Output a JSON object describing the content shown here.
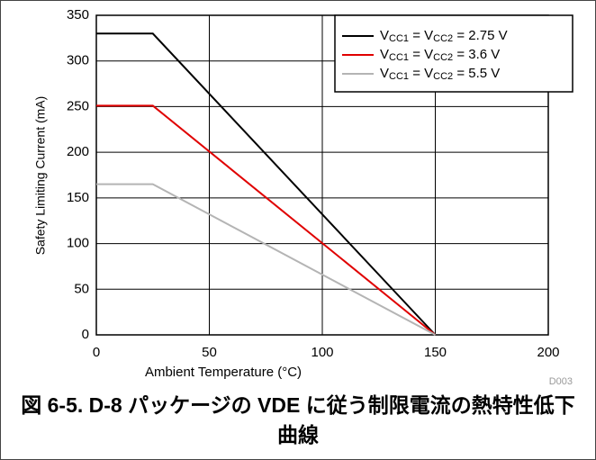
{
  "chart_data": {
    "type": "line",
    "caption": "図 6-5. D-8 パッケージの VDE に従う制限電流の熱特性低下曲線",
    "figure_id": "D003",
    "x_label": "Ambient Temperature (°C)",
    "y_label": "Safety Limiting Current (mA)",
    "x": [
      0,
      25,
      150
    ],
    "series": [
      {
        "name": "VCC1 = VCC2 = 2.75 V",
        "color": "#000000",
        "values": [
          330,
          330,
          0
        ]
      },
      {
        "name": "VCC1 = VCC2 = 3.6 V",
        "color": "#e00000",
        "values": [
          251,
          251,
          0
        ]
      },
      {
        "name": "VCC1 = VCC2 = 5.5 V",
        "color": "#b4b4b4",
        "values": [
          165,
          165,
          0
        ]
      }
    ],
    "xlim": [
      0,
      200
    ],
    "xticks": [
      0,
      50,
      100,
      150,
      200
    ],
    "ylim": [
      0,
      350
    ],
    "yticks": [
      0,
      50,
      100,
      150,
      200,
      250,
      300,
      350
    ],
    "grid": true,
    "legend": "upper right"
  }
}
